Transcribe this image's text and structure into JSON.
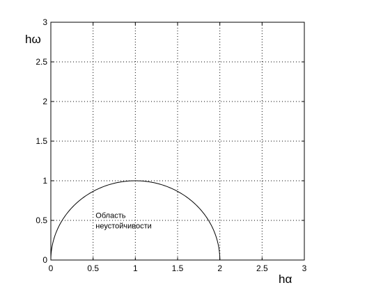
{
  "chart_data": {
    "type": "line",
    "title": "",
    "xlabel": "hα",
    "ylabel": "hω",
    "xlim": [
      0,
      3
    ],
    "ylim": [
      0,
      3
    ],
    "xticks": [
      0,
      0.5,
      1,
      1.5,
      2,
      2.5,
      3
    ],
    "yticks": [
      0,
      0.5,
      1,
      1.5,
      2,
      2.5,
      3
    ],
    "xtick_labels": [
      "0",
      "0.5",
      "1",
      "1.5",
      "2",
      "2.5",
      "3"
    ],
    "ytick_labels": [
      "0",
      "0.5",
      "1",
      "1.5",
      "2",
      "2.5",
      "3"
    ],
    "grid": true,
    "grid_style": "dotted",
    "series": [
      {
        "color": "#000000",
        "shape": "semicircle",
        "center": [
          1,
          0
        ],
        "radius": 1,
        "x": [
          0,
          0.1,
          0.2,
          0.3,
          0.4,
          0.5,
          0.6,
          0.7,
          0.8,
          0.9,
          1.0,
          1.1,
          1.2,
          1.3,
          1.4,
          1.5,
          1.6,
          1.7,
          1.8,
          1.9,
          2.0
        ],
        "y": [
          0,
          0.436,
          0.6,
          0.714,
          0.8,
          0.866,
          0.917,
          0.954,
          0.98,
          0.995,
          1.0,
          0.995,
          0.98,
          0.954,
          0.917,
          0.866,
          0.8,
          0.714,
          0.6,
          0.436,
          0
        ]
      }
    ],
    "annotations": [
      {
        "lines": [
          "Область",
          "неустойчивости"
        ],
        "x": 0.53,
        "y": 0.53
      }
    ]
  }
}
